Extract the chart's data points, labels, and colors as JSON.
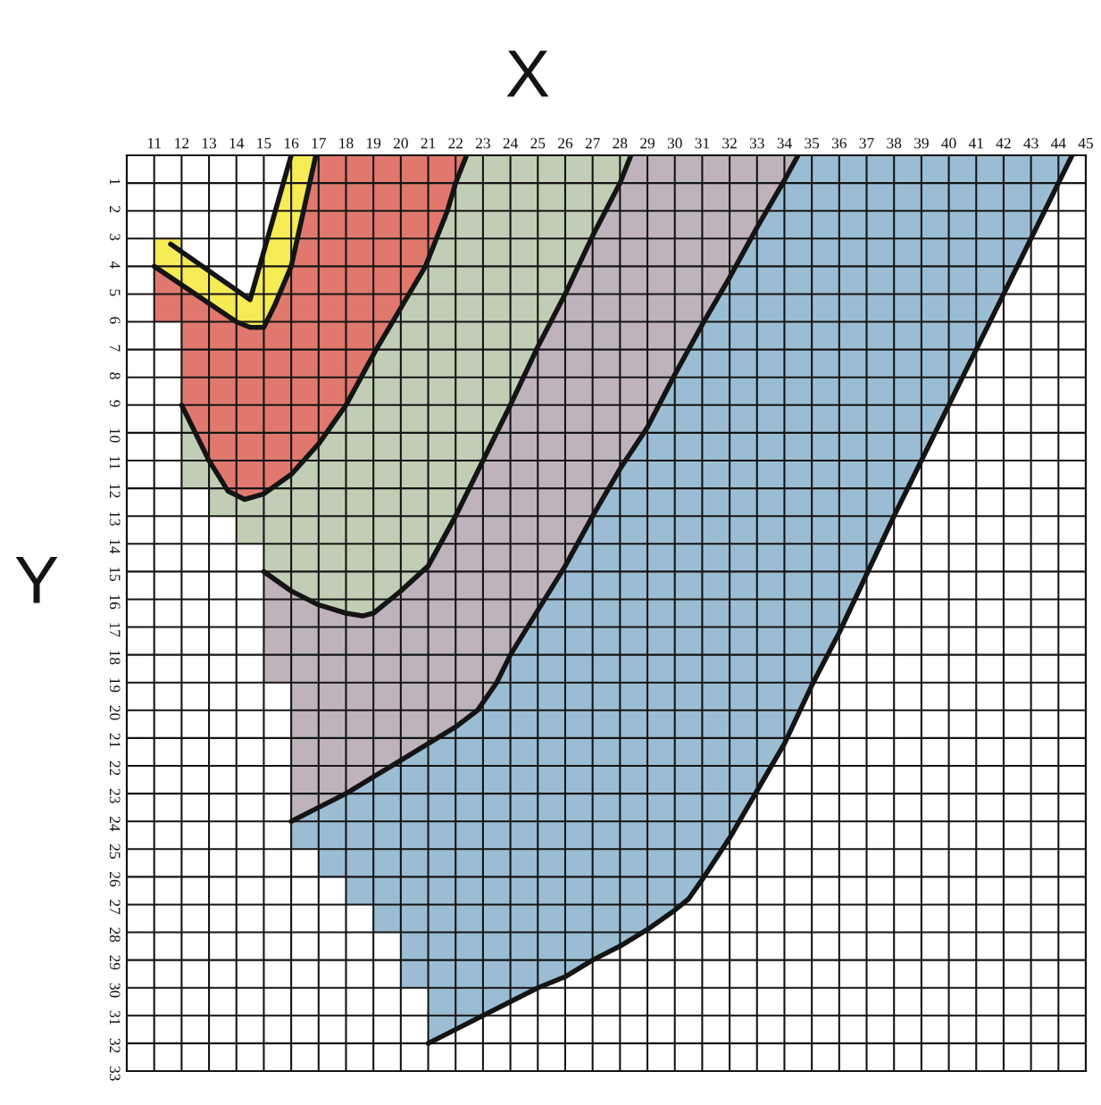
{
  "chart_data": {
    "type": "line",
    "xlabel": "X",
    "ylabel": "Y",
    "xlim": [
      10,
      45
    ],
    "ylim": [
      33,
      0
    ],
    "xticks": [
      11,
      12,
      13,
      14,
      15,
      16,
      17,
      18,
      19,
      20,
      21,
      22,
      23,
      24,
      25,
      26,
      27,
      28,
      29,
      30,
      31,
      32,
      33,
      34,
      35,
      36,
      37,
      38,
      39,
      40,
      41,
      42,
      43,
      44,
      45
    ],
    "yticks": [
      1,
      2,
      3,
      4,
      5,
      6,
      7,
      8,
      9,
      10,
      11,
      12,
      13,
      14,
      15,
      16,
      17,
      18,
      19,
      20,
      21,
      22,
      23,
      24,
      25,
      26,
      27,
      28,
      29,
      30,
      31,
      32,
      33
    ],
    "grid": true,
    "series": [
      {
        "color": "#f5eb55",
        "x": [
          11,
          12,
          12,
          13,
          14,
          14.5,
          15,
          15.5,
          16,
          16.9
        ],
        "values": [
          null,
          null,
          null,
          null,
          null,
          null,
          null,
          null,
          null,
          null
        ],
        "lower": [
          3,
          3,
          3.5,
          4.2,
          4.9,
          5.2,
          3.4,
          1.7,
          0,
          0
        ],
        "upper": [
          4.0,
          4.7,
          4.7,
          5.4,
          6.0,
          6.2,
          6.2,
          5.2,
          4.0,
          0
        ]
      },
      {
        "color": "#e0786e",
        "x": [
          11,
          12,
          12,
          13,
          14,
          14.3,
          14.5,
          15,
          15.5,
          16,
          16.9,
          17,
          18,
          19.1,
          19.7,
          20.3,
          20.9,
          21.3,
          21.7,
          22,
          22.4
        ],
        "values": [
          null,
          null,
          null,
          null,
          null,
          null,
          null,
          null,
          null,
          null,
          null,
          null,
          null,
          null,
          null,
          null,
          null,
          null,
          null,
          null,
          null
        ],
        "lower": [
          4.0,
          4.7,
          4.7,
          5.4,
          6.0,
          6.1,
          6.2,
          6.2,
          5.2,
          4.0,
          0,
          0,
          0,
          0,
          0,
          0,
          0,
          0,
          0,
          0,
          0
        ],
        "upper": [
          6,
          6,
          9,
          11,
          12.3,
          12.4,
          12.3,
          12.2,
          11.8,
          11.5,
          10.5,
          10.4,
          9,
          7,
          6,
          5,
          4,
          3,
          2,
          1,
          0
        ]
      },
      {
        "color": "#c1cdb5",
        "x": [
          12,
          13,
          13,
          13.7,
          14,
          14,
          14.3,
          15,
          15,
          16,
          17,
          18,
          18.6,
          19,
          19.1,
          19.5,
          19.7,
          20,
          20.3,
          20.9,
          21,
          21.3,
          21.7,
          22,
          22.4,
          23,
          24,
          25,
          26,
          27,
          28,
          28.4
        ],
        "values": [
          null,
          null,
          null,
          null,
          null,
          null,
          null,
          null,
          null,
          null,
          null,
          null,
          null,
          null,
          null,
          null,
          null,
          null,
          null,
          null,
          null,
          null,
          null,
          null,
          null,
          null,
          null,
          null,
          null,
          null,
          null,
          null
        ],
        "lower": [
          9,
          11,
          11,
          12.1,
          12.3,
          12.3,
          12.4,
          12.2,
          12.2,
          11.5,
          10.4,
          9,
          7.9,
          7.2,
          7,
          6.3,
          6,
          5.5,
          5,
          4,
          3.8,
          3,
          2,
          1,
          0,
          0,
          0,
          0,
          0,
          0,
          0,
          0
        ],
        "upper": [
          12,
          12,
          13,
          13,
          13,
          14,
          14,
          14,
          15,
          15.7,
          16.2,
          16.5,
          16.6,
          16.5,
          16.4,
          16.1,
          15.9,
          15.7,
          15.4,
          14.9,
          14.8,
          14.3,
          13.6,
          13,
          12.2,
          11,
          9,
          6.9,
          5,
          2.9,
          1,
          0
        ]
      },
      {
        "color": "#beb3bb",
        "x": [
          15,
          16,
          16,
          17,
          18,
          18.6,
          19,
          19.5,
          20,
          21,
          22,
          22.8,
          23,
          23.5,
          24,
          25,
          26,
          27,
          28,
          28.4,
          29,
          30,
          31,
          32,
          33,
          34,
          34.5
        ],
        "values": [
          null,
          null,
          null,
          null,
          null,
          null,
          null,
          null,
          null,
          null,
          null,
          null,
          null,
          null,
          null,
          null,
          null,
          null,
          null,
          null,
          null,
          null,
          null,
          null,
          null,
          null,
          null
        ],
        "lower": [
          15,
          15.7,
          15.7,
          16.2,
          16.5,
          16.6,
          16.5,
          16.1,
          15.7,
          14.8,
          13,
          11.4,
          11,
          10,
          9,
          6.9,
          5,
          2.9,
          1,
          0,
          0,
          0,
          0,
          0,
          0,
          0,
          0
        ],
        "upper": [
          19,
          19,
          24,
          23.5,
          23,
          22.6,
          22.4,
          22.1,
          21.8,
          21.2,
          20.6,
          20,
          19.7,
          19,
          18,
          16.4,
          14.8,
          13,
          11.3,
          10.7,
          9.8,
          7.9,
          6.1,
          4.4,
          2.6,
          0.9,
          0
        ]
      },
      {
        "color": "#9bbdd3",
        "x": [
          16,
          17,
          17,
          18,
          18,
          19,
          19,
          20,
          20,
          21,
          21,
          22,
          22.8,
          23,
          23.5,
          24,
          25,
          26,
          27,
          28,
          29,
          30,
          30.5,
          31,
          32,
          33,
          34,
          34.5,
          35,
          36,
          37,
          38,
          39,
          40,
          41,
          42,
          43,
          44,
          44.5
        ],
        "values": [
          null,
          null,
          null,
          null,
          null,
          null,
          null,
          null,
          null,
          null,
          null,
          null,
          null,
          null,
          null,
          null,
          null,
          null,
          null,
          null,
          null,
          null,
          null,
          null,
          null,
          null,
          null,
          null,
          null,
          null,
          null,
          null,
          null,
          null,
          null,
          null,
          null,
          null,
          null
        ],
        "lower": [
          24,
          23.5,
          23.5,
          23,
          23,
          22.4,
          22.4,
          21.8,
          21.8,
          21.2,
          21.2,
          20.6,
          20,
          19.7,
          19,
          18,
          16.4,
          14.8,
          13,
          11.3,
          9.8,
          7.9,
          7,
          6.1,
          4.4,
          2.6,
          0.9,
          0,
          0,
          0,
          0,
          0,
          0,
          0,
          0,
          0,
          0,
          0,
          0
        ],
        "upper": [
          25,
          25,
          26,
          26,
          27,
          27,
          28,
          28,
          30,
          30,
          32,
          31.5,
          31.1,
          31,
          30.8,
          30.5,
          30,
          29.6,
          29,
          28.5,
          27.9,
          27.2,
          26.8,
          26.1,
          24.6,
          22.9,
          21.2,
          20.2,
          19.1,
          17.2,
          15.1,
          13,
          11,
          9,
          7,
          5,
          3,
          1,
          0
        ]
      },
      {
        "color": "#141414",
        "x": [
          11.6,
          14.5,
          16
        ],
        "values": [
          3.2,
          5.2,
          0
        ]
      },
      {
        "color": "#141414",
        "x": [
          11,
          14,
          14.5,
          15,
          15.4,
          15.7,
          16,
          16.9
        ],
        "values": [
          4.0,
          6.0,
          6.2,
          6.2,
          5.4,
          4.7,
          4.0,
          0
        ]
      },
      {
        "color": "#141414",
        "x": [
          12,
          13,
          13.7,
          14.3,
          15,
          16,
          17,
          18,
          19.1,
          19.7,
          20.3,
          20.9,
          21.3,
          21.7,
          22,
          22.4
        ],
        "values": [
          9,
          11,
          12.1,
          12.4,
          12.2,
          11.5,
          10.4,
          9,
          7,
          6,
          5,
          4,
          3,
          2,
          1,
          0
        ]
      },
      {
        "color": "#141414",
        "x": [
          15,
          16,
          17,
          18,
          18.6,
          19,
          19.5,
          20,
          21,
          22,
          23,
          24,
          25,
          26,
          27,
          28,
          28.4
        ],
        "values": [
          15,
          15.7,
          16.2,
          16.5,
          16.6,
          16.5,
          16.1,
          15.7,
          14.8,
          13,
          11,
          9,
          6.9,
          5,
          2.9,
          1,
          0
        ]
      },
      {
        "color": "#141414",
        "x": [
          16,
          17,
          18,
          19,
          20,
          21,
          22,
          22.8,
          23.5,
          24,
          25,
          26,
          27,
          28,
          29,
          30,
          31,
          32,
          33,
          34,
          34.5
        ],
        "values": [
          24,
          23.5,
          23,
          22.4,
          21.8,
          21.2,
          20.6,
          20,
          19,
          18,
          16.4,
          14.8,
          13,
          11.3,
          9.8,
          7.9,
          6.1,
          4.4,
          2.6,
          0.9,
          0
        ]
      },
      {
        "color": "#141414",
        "x": [
          21,
          22,
          23,
          24,
          25,
          26,
          27,
          28,
          29,
          30,
          30.5,
          31,
          32,
          33,
          34,
          35,
          36,
          37,
          38,
          39,
          40,
          41,
          42,
          43,
          44,
          44.5
        ],
        "values": [
          32,
          31.5,
          31,
          30.5,
          30,
          29.6,
          29,
          28.5,
          27.9,
          27.2,
          26.8,
          26.1,
          24.6,
          22.9,
          21.2,
          19.1,
          17.2,
          15.1,
          13,
          11,
          9,
          7,
          5,
          3,
          1,
          0
        ]
      }
    ]
  }
}
